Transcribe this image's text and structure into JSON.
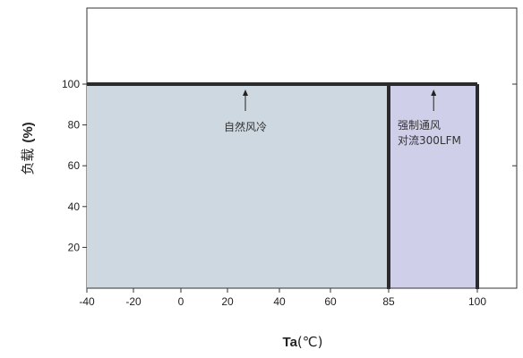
{
  "chart_data": {
    "type": "area",
    "xlabel_main": "Ta",
    "xlabel_unit": "(℃)",
    "ylabel_main": "负载",
    "ylabel_unit": "(%)",
    "x_ticks": [
      -40,
      -20,
      0,
      20,
      40,
      60,
      85,
      100
    ],
    "y_ticks": [
      20,
      40,
      60,
      80,
      100
    ],
    "xlim": [
      -40,
      120
    ],
    "ylim": [
      0,
      140
    ],
    "grid": false,
    "regions": [
      {
        "name": "自然风冷",
        "label_lines": [
          "自然风冷"
        ],
        "x": [
          -40,
          85
        ],
        "y": [
          0,
          100
        ],
        "color": "#ced8e0"
      },
      {
        "name": "强制通风对流300LFM",
        "label_lines": [
          "强制通风",
          "对流300LFM"
        ],
        "x": [
          85,
          100
        ],
        "y": [
          0,
          100
        ],
        "color": "#d0cfe9"
      }
    ],
    "derating_curve": {
      "x": [
        -40,
        85,
        100
      ],
      "y": [
        100,
        100,
        100
      ]
    }
  }
}
